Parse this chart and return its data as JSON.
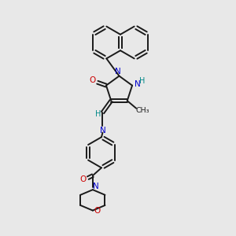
{
  "bg_color": "#e8e8e8",
  "bond_color": "#1a1a1a",
  "N_color": "#0000cc",
  "O_color": "#cc0000",
  "H_color": "#008888",
  "figsize": [
    3.0,
    3.0
  ],
  "dpi": 100,
  "xlim": [
    0,
    10
  ],
  "ylim": [
    0,
    10
  ]
}
